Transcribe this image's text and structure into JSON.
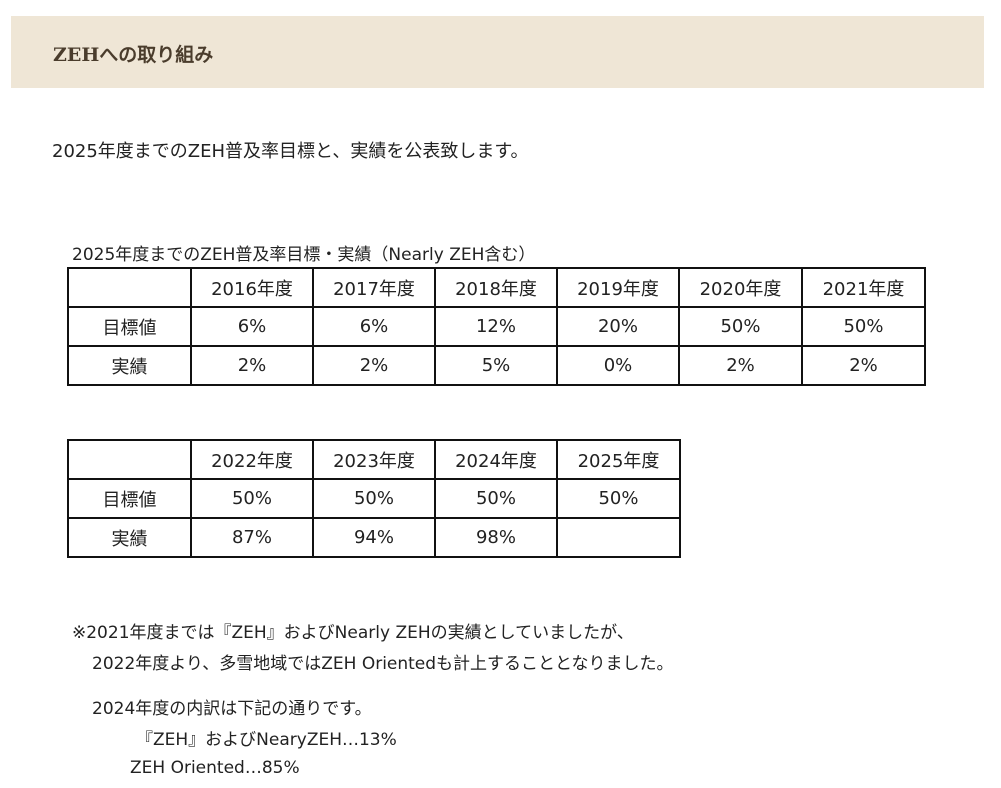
{
  "header": {
    "title": "ZEHへの取り組み",
    "band_color": "#efe6d6"
  },
  "intro": "2025年度までのZEH普及率目標と、実績を公表致します。",
  "table_caption": "2025年度までのZEH普及率目標・実績（Nearly ZEH含む）",
  "table1": {
    "years": [
      "2016年度",
      "2017年度",
      "2018年度",
      "2019年度",
      "2020年度",
      "2021年度"
    ],
    "target_label": "目標値",
    "targets": [
      "6%",
      "6%",
      "12%",
      "20%",
      "50%",
      "50%"
    ],
    "result_label": "実績",
    "results": [
      "2%",
      "2%",
      "5%",
      "0%",
      "2%",
      "2%"
    ]
  },
  "table2": {
    "years": [
      "2022年度",
      "2023年度",
      "2024年度",
      "2025年度"
    ],
    "target_label": "目標値",
    "targets": [
      "50%",
      "50%",
      "50%",
      "50%"
    ],
    "result_label": "実績",
    "results": [
      "87%",
      "94%",
      "98%",
      ""
    ]
  },
  "notes": {
    "line1": "※2021年度までは『ZEH』およびNearly ZEHの実績としていましたが、",
    "line2": "2022年度より、多雪地域ではZEH Orientedも計上することとなりました。",
    "line3": "2024年度の内訳は下記の通りです。",
    "line4": "『ZEH』およびNearyZEH…13%",
    "line5": "ZEH Oriented…85%"
  }
}
